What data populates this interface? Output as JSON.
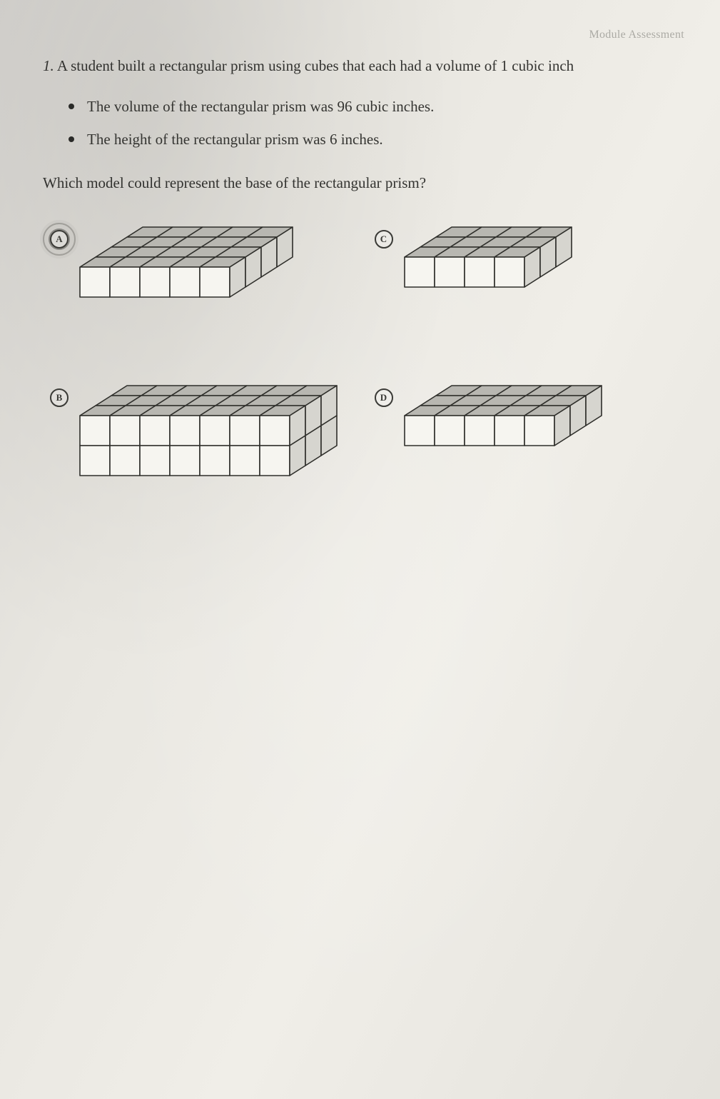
{
  "header_partial": "Module Assessment",
  "question": {
    "number": "1.",
    "stem": "A student built a rectangular prism using cubes that each had a volume of 1 cubic inch",
    "facts": [
      "The volume of the rectangular prism was 96 cubic inches.",
      "The height of the rectangular prism was 6 inches."
    ],
    "prompt": "Which model could represent the base of the rectangular prism?"
  },
  "choices": [
    {
      "letter": "A",
      "cols": 5,
      "rows": 4,
      "depth": 1,
      "selected": true
    },
    {
      "letter": "C",
      "cols": 4,
      "rows": 3,
      "depth": 1,
      "selected": false
    },
    {
      "letter": "B",
      "cols": 7,
      "rows": 3,
      "depth": 2,
      "selected": false
    },
    {
      "letter": "D",
      "cols": 5,
      "rows": 3,
      "depth": 1,
      "selected": false
    }
  ],
  "prism_style": {
    "unit": 42,
    "iso_dx": 22,
    "iso_dy": 14,
    "face_front": "#f6f5f0",
    "face_top": "#b8b7b1",
    "face_side": "#d6d5cf",
    "stroke": "#2e2e2a",
    "stroke_width": 1.6
  }
}
